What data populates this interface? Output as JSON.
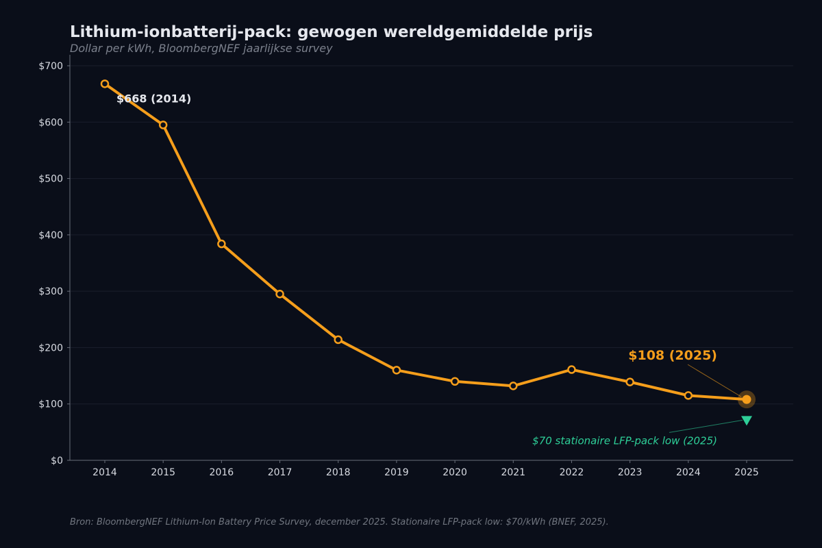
{
  "header": {
    "title": "Lithium-ionbatterij-pack: gewogen wereldgemiddelde prijs",
    "subtitle": "Dollar per kWh, BloombergNEF jaarlijkse survey"
  },
  "footer": {
    "source": "Bron: BloombergNEF Lithium-Ion Battery Price Survey, december 2025. Stationaire LFP-pack low: $70/kWh (BNEF, 2025)."
  },
  "chart_data": {
    "type": "line",
    "title": "Lithium-ionbatterij-pack: gewogen wereldgemiddelde prijs",
    "subtitle": "Dollar per kWh, BloombergNEF jaarlijkse survey",
    "xlabel": "",
    "ylabel": "",
    "x": [
      2014,
      2015,
      2016,
      2017,
      2018,
      2019,
      2020,
      2021,
      2022,
      2023,
      2024,
      2025
    ],
    "series": [
      {
        "values": [
          668,
          595,
          384,
          295,
          214,
          160,
          140,
          132,
          161,
          139,
          115,
          108
        ],
        "color": "#f59e1b"
      }
    ],
    "ylim": [
      0,
      700
    ],
    "yticks": [
      0,
      100,
      200,
      300,
      400,
      500,
      600,
      700
    ],
    "ytick_labels": [
      "$0",
      "$100",
      "$200",
      "$300",
      "$400",
      "$500",
      "$600",
      "$700"
    ],
    "xticks": [
      2014,
      2015,
      2016,
      2017,
      2018,
      2019,
      2020,
      2021,
      2022,
      2023,
      2024,
      2025
    ],
    "grid": true,
    "annotations": [
      {
        "id": "start",
        "x": 2014,
        "y": 668,
        "text": "$668 (2014)",
        "color": "#e6e8ee"
      },
      {
        "id": "end",
        "x": 2025,
        "y": 108,
        "text": "$108 (2025)",
        "color": "#f59e1b"
      },
      {
        "id": "lfp",
        "x": 2025,
        "y": 70,
        "text": "$70 stationaire LFP-pack low (2025)",
        "color": "#2ecf98",
        "marker": "triangle-down"
      }
    ],
    "colors": {
      "line": "#f59e1b",
      "lfp": "#2ecf98",
      "background": "#0a0e19",
      "grid": "#1a1f2c"
    }
  }
}
